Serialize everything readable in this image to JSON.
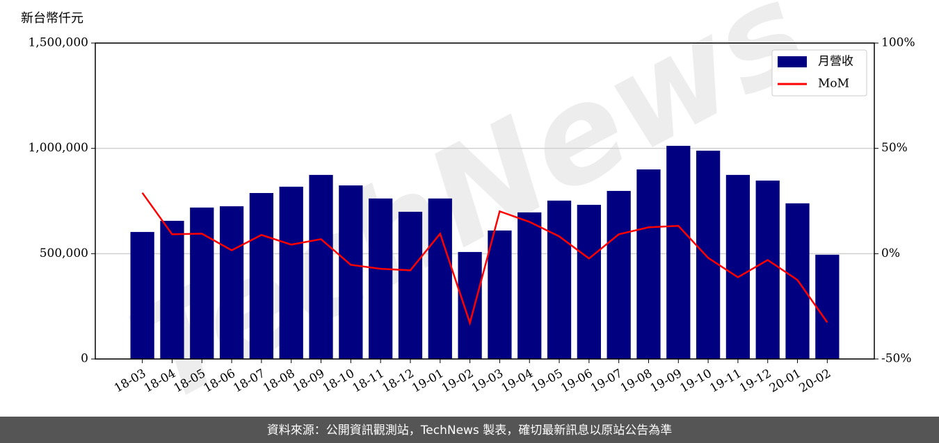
{
  "chart_data": {
    "type": "bar",
    "y_axis_label": "新台幣仟元",
    "watermark": "TechNews",
    "source": "資料來源：公開資訊觀測站，TechNews 製表，確切最新訊息以原站公告為準",
    "categories": [
      "18-03",
      "18-04",
      "18-05",
      "18-06",
      "18-07",
      "18-08",
      "18-09",
      "18-10",
      "18-11",
      "18-12",
      "19-01",
      "19-02",
      "19-03",
      "19-04",
      "19-05",
      "19-06",
      "19-07",
      "19-08",
      "19-09",
      "19-10",
      "19-11",
      "19-12",
      "20-01",
      "20-02"
    ],
    "series": [
      {
        "name": "月營收",
        "type": "bar",
        "color": "#000080",
        "values": [
          603000,
          656000,
          719000,
          725000,
          788000,
          818000,
          874000,
          824000,
          762000,
          699000,
          762000,
          508000,
          610000,
          696000,
          752000,
          732000,
          798000,
          900000,
          1012000,
          989000,
          874000,
          847000,
          739000,
          495000
        ]
      },
      {
        "name": "MoM",
        "type": "line",
        "axis": "y2",
        "color": "#ff0000",
        "values": [
          28.9,
          9.2,
          9.5,
          1.6,
          8.9,
          4.3,
          6.9,
          -5.3,
          -7.2,
          -7.9,
          9.5,
          -32.9,
          20.1,
          15.1,
          8.2,
          -2.3,
          9.2,
          12.5,
          13.2,
          -2.0,
          -11.2,
          -3.0,
          -12.5,
          -32.6
        ]
      }
    ],
    "ylim": [
      0,
      1500000
    ],
    "yticks": [
      0,
      {
        "value": 500000,
        "label": "500,000"
      },
      {
        "value": 1000000,
        "label": "1,000,000"
      },
      {
        "value": 1500000,
        "label": "1,500,000"
      }
    ],
    "y2lim": [
      -50,
      100
    ],
    "y2ticks": [
      {
        "value": -50,
        "label": "-50%"
      },
      {
        "value": 0,
        "label": "0%"
      },
      {
        "value": 50,
        "label": "50%"
      },
      {
        "value": 100,
        "label": "100%"
      }
    ],
    "grid": true,
    "legend": "upper right"
  }
}
